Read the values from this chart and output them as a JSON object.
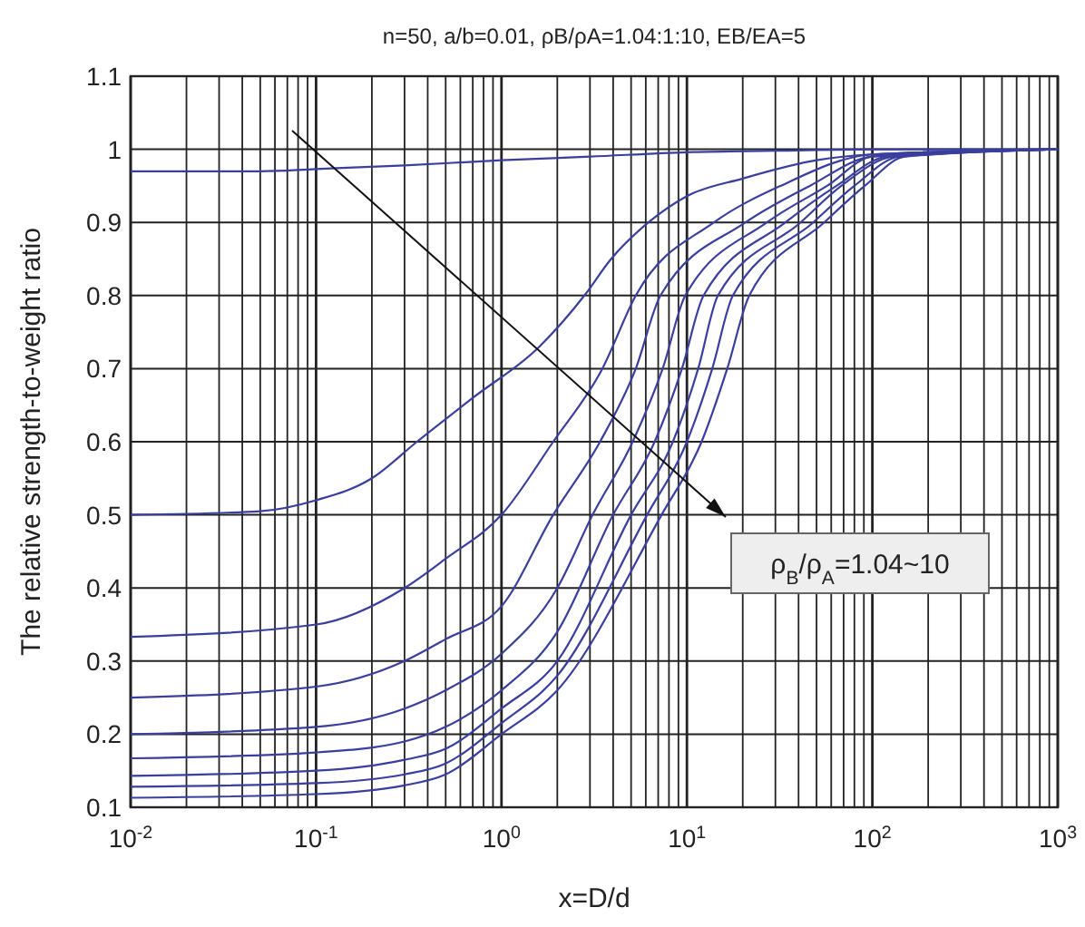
{
  "chart_data": {
    "type": "line",
    "title": "n=50, a/b=0.01, ρB/ρA=1.04:1:10, EB/EA=5",
    "xlabel": "x=D/d",
    "ylabel": "The relative strength-to-weight ratio",
    "log": "x",
    "grid": true,
    "line_style": "solid",
    "marker": "none",
    "xlim": [
      0.01,
      1000
    ],
    "ylim": [
      0.1,
      1.1
    ],
    "xticks": [
      {
        "value": 0.01,
        "label": "10$^{-2}$"
      },
      {
        "value": 0.02,
        "label": null
      },
      {
        "value": 0.03,
        "label": null
      },
      {
        "value": 0.04,
        "label": null
      },
      {
        "value": 0.05,
        "label": null
      },
      {
        "value": 0.06,
        "label": null
      },
      {
        "value": 0.07,
        "label": null
      },
      {
        "value": 0.08,
        "label": null
      },
      {
        "value": 0.09,
        "label": null
      },
      {
        "value": 0.1,
        "label": "10$^{-1}$"
      },
      {
        "value": 0.2,
        "label": null
      },
      {
        "value": 0.3,
        "label": null
      },
      {
        "value": 0.4,
        "label": null
      },
      {
        "value": 0.5,
        "label": null
      },
      {
        "value": 0.6,
        "label": null
      },
      {
        "value": 0.7,
        "label": null
      },
      {
        "value": 0.8,
        "label": null
      },
      {
        "value": 0.9,
        "label": null
      },
      {
        "value": 1,
        "label": "10$^{0}$"
      },
      {
        "value": 2,
        "label": null
      },
      {
        "value": 3,
        "label": null
      },
      {
        "value": 4,
        "label": null
      },
      {
        "value": 5,
        "label": null
      },
      {
        "value": 6,
        "label": null
      },
      {
        "value": 7,
        "label": null
      },
      {
        "value": 8,
        "label": null
      },
      {
        "value": 9,
        "label": null
      },
      {
        "value": 10,
        "label": "10$^{1}$"
      },
      {
        "value": 20,
        "label": null
      },
      {
        "value": 30,
        "label": null
      },
      {
        "value": 40,
        "label": null
      },
      {
        "value": 50,
        "label": null
      },
      {
        "value": 60,
        "label": null
      },
      {
        "value": 70,
        "label": null
      },
      {
        "value": 80,
        "label": null
      },
      {
        "value": 90,
        "label": null
      },
      {
        "value": 100,
        "label": "10$^{2}$"
      },
      {
        "value": 200,
        "label": null
      },
      {
        "value": 300,
        "label": null
      },
      {
        "value": 400,
        "label": null
      },
      {
        "value": 500,
        "label": null
      },
      {
        "value": 600,
        "label": null
      },
      {
        "value": 700,
        "label": null
      },
      {
        "value": 800,
        "label": null
      },
      {
        "value": 900,
        "label": null
      },
      {
        "value": 1000,
        "label": "10$^{3}$"
      }
    ],
    "yticks": [
      0.1,
      0.2,
      0.3,
      0.4,
      0.5,
      0.6,
      0.7,
      0.8,
      0.9,
      1,
      1.1
    ],
    "annotations": [
      "ρ$_{B}$/ρ$_{A}$=1.04~10"
    ],
    "series": [
      {
        "color": "#3a3f9e",
        "x": [
          0.01,
          0.05,
          0.1,
          0.3,
          1,
          3,
          10,
          30,
          100,
          1000
        ],
        "values": [
          0.97,
          0.97,
          0.973,
          0.978,
          0.985,
          0.99,
          0.996,
          0.998,
          1.0,
          1.0
        ]
      },
      {
        "color": "#3a3f9e",
        "x": [
          0.01,
          0.05,
          0.1,
          0.2,
          0.35,
          0.7,
          1.6,
          2.8,
          3.9,
          6.2,
          10,
          20,
          50,
          100,
          1000
        ],
        "values": [
          0.5,
          0.505,
          0.52,
          0.55,
          0.6,
          0.66,
          0.73,
          0.8,
          0.85,
          0.9,
          0.936,
          0.96,
          0.985,
          0.993,
          1.0
        ]
      },
      {
        "color": "#3a3f9e",
        "x": [
          0.01,
          0.1,
          0.3,
          0.5,
          1,
          1.9,
          3.5,
          5.3,
          14,
          32,
          100,
          1000
        ],
        "values": [
          0.333,
          0.35,
          0.4,
          0.44,
          0.5,
          0.6,
          0.7,
          0.8,
          0.9,
          0.95,
          0.993,
          1.0
        ]
      },
      {
        "color": "#3a3f9e",
        "x": [
          0.01,
          0.1,
          0.3,
          0.5,
          1,
          1.9,
          3.4,
          5.3,
          7.2,
          20.7,
          46,
          100,
          1000
        ],
        "values": [
          0.25,
          0.265,
          0.3,
          0.33,
          0.375,
          0.5,
          0.6,
          0.7,
          0.8,
          0.9,
          0.95,
          0.99,
          1.0
        ]
      },
      {
        "color": "#3a3f9e",
        "x": [
          0.01,
          0.1,
          0.3,
          0.5,
          1,
          2,
          3.1,
          5.1,
          7.4,
          9.8,
          27,
          57,
          100,
          1000
        ],
        "values": [
          0.2,
          0.21,
          0.235,
          0.26,
          0.31,
          0.4,
          0.5,
          0.6,
          0.7,
          0.8,
          0.9,
          0.95,
          0.99,
          1.0
        ]
      },
      {
        "color": "#3a3f9e",
        "x": [
          0.01,
          0.1,
          0.3,
          0.5,
          1,
          2,
          4,
          6.7,
          9.4,
          12.3,
          34,
          64,
          120,
          1000
        ],
        "values": [
          0.167,
          0.175,
          0.19,
          0.21,
          0.26,
          0.34,
          0.5,
          0.6,
          0.7,
          0.8,
          0.9,
          0.95,
          0.99,
          1.0
        ]
      },
      {
        "color": "#3a3f9e",
        "x": [
          0.01,
          0.1,
          0.3,
          0.5,
          1,
          2,
          5,
          8.4,
          11.5,
          14.7,
          41,
          68,
          130,
          1000
        ],
        "values": [
          0.143,
          0.15,
          0.165,
          0.18,
          0.235,
          0.3,
          0.5,
          0.6,
          0.7,
          0.8,
          0.9,
          0.95,
          0.99,
          1.0
        ]
      },
      {
        "color": "#3a3f9e",
        "x": [
          0.01,
          0.1,
          0.3,
          0.5,
          1,
          2,
          6.1,
          10,
          13.7,
          17.7,
          48,
          80,
          140,
          1000
        ],
        "values": [
          0.128,
          0.133,
          0.145,
          0.16,
          0.215,
          0.28,
          0.5,
          0.6,
          0.7,
          0.8,
          0.9,
          0.95,
          0.99,
          1.0
        ]
      },
      {
        "color": "#3a3f9e",
        "x": [
          0.01,
          0.1,
          0.3,
          0.5,
          1,
          2,
          7.3,
          12,
          16.5,
          21.7,
          55,
          91,
          150,
          1000
        ],
        "values": [
          0.113,
          0.118,
          0.13,
          0.145,
          0.2,
          0.26,
          0.5,
          0.6,
          0.7,
          0.8,
          0.9,
          0.95,
          0.99,
          1.0
        ]
      }
    ]
  }
}
